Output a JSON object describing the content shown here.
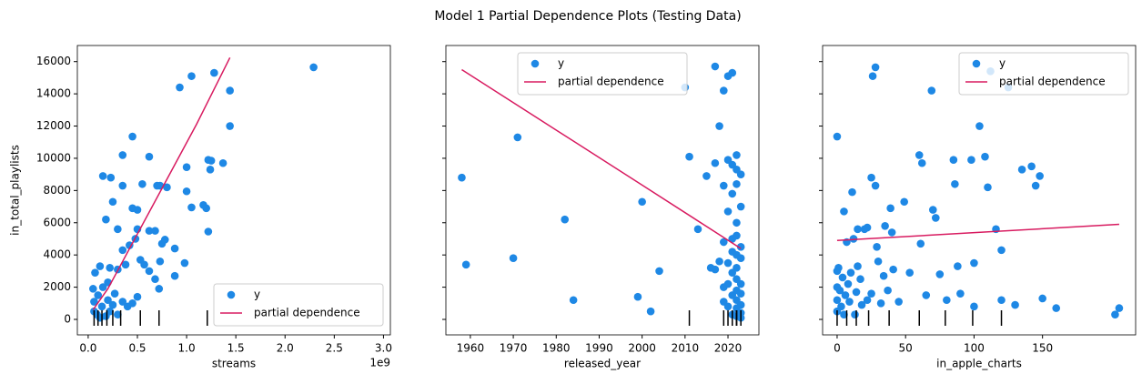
{
  "title": "Model 1 Partial Dependence Plots (Testing Data)",
  "chart_data": [
    {
      "type": "scatter",
      "xlabel": "streams",
      "ylabel": "in_total_playlists",
      "offset_text": "1e9",
      "xlim": [
        -0.11,
        3.07
      ],
      "ylim": [
        -960,
        17000
      ],
      "xticks": [
        {
          "value": 0,
          "label": "0.0"
        },
        0.5,
        {
          "value": 1,
          "label": "1.0"
        },
        1.5,
        {
          "value": 2,
          "label": "2.0"
        },
        2.5,
        {
          "value": 3,
          "label": "3.0"
        }
      ],
      "yticks": [
        0,
        2000,
        4000,
        6000,
        8000,
        10000,
        12000,
        14000,
        16000
      ],
      "legend": "lower right",
      "series": [
        {
          "name": "y",
          "color": "#1e88e5",
          "x": [
            0.93,
            1.05,
            1.28,
            2.29,
            1.44,
            1.44,
            0.45,
            0.35,
            0.62,
            1.22,
            1.25,
            1.37,
            1.0,
            1.24,
            0.15,
            0.23,
            0.35,
            0.55,
            0.7,
            0.73,
            0.8,
            1.0,
            1.17,
            1.2,
            1.05,
            0.25,
            0.18,
            0.3,
            0.45,
            0.5,
            0.5,
            0.62,
            0.68,
            1.22,
            0.35,
            0.42,
            0.48,
            0.75,
            0.78,
            0.88,
            0.98,
            0.73,
            0.53,
            0.57,
            0.62,
            0.68,
            0.72,
            0.88,
            0.38,
            0.3,
            0.22,
            0.12,
            0.07,
            0.05,
            0.1,
            0.15,
            0.2,
            0.25,
            0.06,
            0.09,
            0.12,
            0.18,
            0.22,
            0.3,
            0.35,
            0.4,
            0.45,
            0.5,
            0.06,
            0.14,
            0.2,
            0.27
          ],
          "values": [
            14400,
            15100,
            15300,
            15650,
            14200,
            12000,
            11350,
            10200,
            10100,
            9900,
            9850,
            9700,
            9450,
            9300,
            8900,
            8800,
            8300,
            8400,
            8300,
            8300,
            8200,
            7950,
            7100,
            6900,
            6950,
            7300,
            6200,
            5600,
            6900,
            6800,
            5600,
            5500,
            5500,
            5450,
            4300,
            4600,
            5000,
            4700,
            4950,
            4400,
            3500,
            3600,
            3700,
            3400,
            3000,
            2500,
            1900,
            2700,
            3400,
            3100,
            3200,
            3300,
            2900,
            1900,
            1500,
            2000,
            1200,
            900,
            500,
            300,
            100,
            200,
            500,
            300,
            1100,
            800,
            1000,
            1400,
            1100,
            800,
            2300,
            1600
          ]
        },
        {
          "name": "partial dependence",
          "color": "#d81b60",
          "x": [
            0.05,
            0.2,
            0.5,
            0.8,
            1.1,
            1.44
          ],
          "values": [
            600,
            1900,
            5300,
            8700,
            12100,
            16250
          ]
        }
      ],
      "deciles": [
        0.06,
        0.1,
        0.14,
        0.19,
        0.25,
        0.33,
        0.53,
        0.72,
        1.21
      ]
    },
    {
      "type": "scatter",
      "xlabel": "released_year",
      "xlim": [
        1954.3,
        2027.2
      ],
      "ylim": [
        -960,
        17000
      ],
      "xticks": [
        1960,
        1970,
        1980,
        1990,
        2000,
        2010,
        2020
      ],
      "yticks": [
        0,
        2000,
        4000,
        6000,
        8000,
        10000,
        12000,
        14000,
        16000
      ],
      "legend": "upper center",
      "series": [
        {
          "name": "y",
          "color": "#1e88e5",
          "x": [
            1958,
            1959,
            1970,
            1971,
            1982,
            1984,
            1999,
            2000,
            2002,
            2004,
            2010,
            2011,
            2013,
            2015,
            2016,
            2017,
            2017,
            2017,
            2018,
            2018,
            2019,
            2019,
            2019,
            2019,
            2019,
            2020,
            2020,
            2020,
            2020,
            2020,
            2021,
            2021,
            2021,
            2021,
            2021,
            2021,
            2021,
            2022,
            2022,
            2022,
            2022,
            2022,
            2022,
            2022,
            2022,
            2022,
            2022,
            2022,
            2022,
            2023,
            2023,
            2023,
            2023,
            2023,
            2023,
            2023,
            2023,
            2023,
            2021,
            2020
          ],
          "values": [
            8800,
            3400,
            3800,
            11300,
            6200,
            1200,
            1400,
            7300,
            500,
            3000,
            14400,
            10100,
            5600,
            8900,
            3200,
            15700,
            9700,
            3100,
            12000,
            3600,
            14200,
            8300,
            4800,
            2000,
            1100,
            15100,
            9900,
            6700,
            3500,
            800,
            15300,
            9600,
            7800,
            5000,
            2900,
            1500,
            300,
            10200,
            9300,
            8400,
            6000,
            5200,
            4000,
            3200,
            2500,
            1800,
            1200,
            700,
            200,
            9000,
            7000,
            4500,
            3800,
            2200,
            1600,
            900,
            400,
            100,
            4200,
            2200
          ]
        },
        {
          "name": "partial dependence",
          "color": "#d81b60",
          "x": [
            1958,
            1980,
            2000,
            2023
          ],
          "values": [
            15500,
            11750,
            8340,
            4400
          ]
        }
      ],
      "deciles": [
        2011,
        2019,
        2020,
        2021,
        2021,
        2022,
        2022,
        2022,
        2023
      ]
    },
    {
      "type": "scatter",
      "xlabel": "in_apple_charts",
      "xlim": [
        -10.6,
        218
      ],
      "ylim": [
        -960,
        17000
      ],
      "xticks": [
        0,
        50,
        100,
        150
      ],
      "yticks": [
        0,
        2000,
        4000,
        6000,
        8000,
        10000,
        12000,
        14000,
        16000
      ],
      "legend": "upper right",
      "series": [
        {
          "name": "y",
          "color": "#1e88e5",
          "x": [
            0,
            0,
            0,
            0,
            0,
            1,
            2,
            3,
            4,
            5,
            5,
            6,
            7,
            8,
            9,
            10,
            11,
            12,
            13,
            14,
            15,
            15,
            17,
            18,
            20,
            22,
            22,
            25,
            25,
            26,
            28,
            28,
            29,
            30,
            32,
            34,
            35,
            37,
            39,
            40,
            41,
            45,
            49,
            53,
            60,
            61,
            62,
            65,
            69,
            70,
            72,
            75,
            80,
            85,
            86,
            88,
            90,
            98,
            100,
            100,
            104,
            108,
            110,
            112,
            116,
            120,
            120,
            125,
            130,
            135,
            142,
            145,
            148,
            150,
            160,
            203,
            206
          ],
          "values": [
            11350,
            3000,
            2000,
            1200,
            500,
            3200,
            1800,
            800,
            2600,
            6700,
            300,
            1500,
            4800,
            2200,
            1100,
            2900,
            7900,
            5000,
            300,
            1700,
            5600,
            3300,
            2500,
            900,
            5600,
            5700,
            1200,
            8800,
            1600,
            15100,
            15650,
            8300,
            4500,
            3600,
            1000,
            2700,
            5800,
            1800,
            6900,
            5400,
            3100,
            1100,
            7300,
            2900,
            10200,
            4700,
            9700,
            1500,
            14200,
            6800,
            6300,
            2800,
            1200,
            9900,
            8400,
            3300,
            1600,
            9900,
            3500,
            800,
            12000,
            10100,
            8200,
            15400,
            5600,
            4300,
            1200,
            14400,
            900,
            9300,
            9500,
            8300,
            8900,
            1300,
            700,
            300,
            700
          ]
        },
        {
          "name": "partial dependence",
          "color": "#d81b60",
          "x": [
            0,
            206
          ],
          "values": [
            4900,
            5900
          ]
        }
      ],
      "deciles": [
        0,
        7,
        14,
        23,
        38,
        60,
        79,
        99,
        120
      ]
    }
  ]
}
